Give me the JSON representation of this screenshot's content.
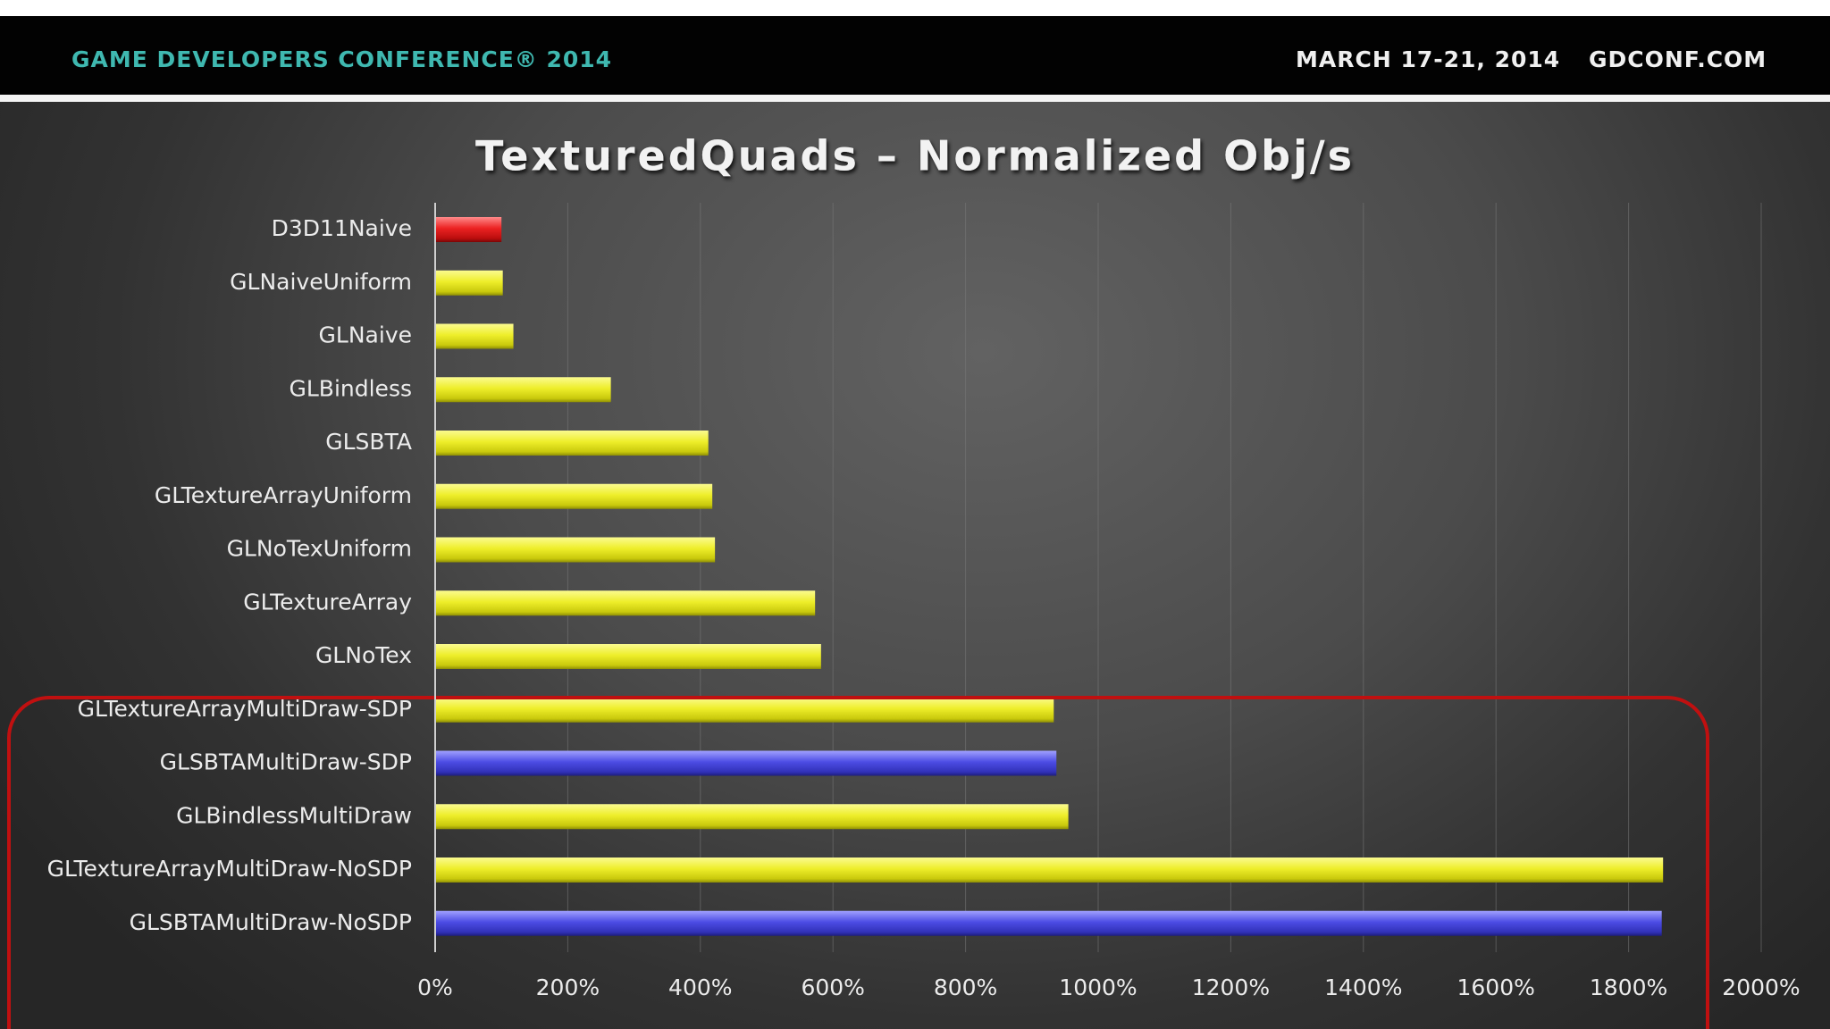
{
  "header": {
    "conference": "GAME DEVELOPERS CONFERENCE® 2014",
    "dates": "MARCH 17-21, 2014",
    "url": "GDCONF.COM"
  },
  "colors": {
    "header_accent": "#3fb8b0",
    "bar_yellow": "#e6e619",
    "bar_red": "#e01818",
    "bar_blue": "#4646dc",
    "highlight_outline": "#c01010"
  },
  "chart_data": {
    "type": "bar",
    "orientation": "horizontal",
    "title": "TexturedQuads – Normalized Obj/s",
    "xlabel": "",
    "ylabel": "",
    "xlim": [
      0,
      2000
    ],
    "x_ticks": [
      "0%",
      "200%",
      "400%",
      "600%",
      "800%",
      "1000%",
      "1200%",
      "1400%",
      "1600%",
      "1800%",
      "2000%"
    ],
    "grid": true,
    "legend": "none",
    "unit": "%",
    "categories": [
      "D3D11Naive",
      "GLNaiveUniform",
      "GLNaive",
      "GLBindless",
      "GLSBTA",
      "GLTextureArrayUniform",
      "GLNoTexUniform",
      "GLTextureArray",
      "GLNoTex",
      "GLTextureArrayMultiDraw-SDP",
      "GLSBTAMultiDraw-SDP",
      "GLBindlessMultiDraw",
      "GLTextureArrayMultiDraw-NoSDP",
      "GLSBTAMultiDraw-NoSDP"
    ],
    "values": [
      100,
      102,
      118,
      265,
      412,
      418,
      422,
      573,
      582,
      933,
      937,
      955,
      1852,
      1850
    ],
    "bar_colors": [
      "red",
      "yellow",
      "yellow",
      "yellow",
      "yellow",
      "yellow",
      "yellow",
      "yellow",
      "yellow",
      "yellow",
      "blue",
      "yellow",
      "yellow",
      "blue"
    ],
    "highlighted_categories": [
      "GLTextureArrayMultiDraw-SDP",
      "GLSBTAMultiDraw-SDP",
      "GLBindlessMultiDraw",
      "GLTextureArrayMultiDraw-NoSDP",
      "GLSBTAMultiDraw-NoSDP"
    ]
  }
}
